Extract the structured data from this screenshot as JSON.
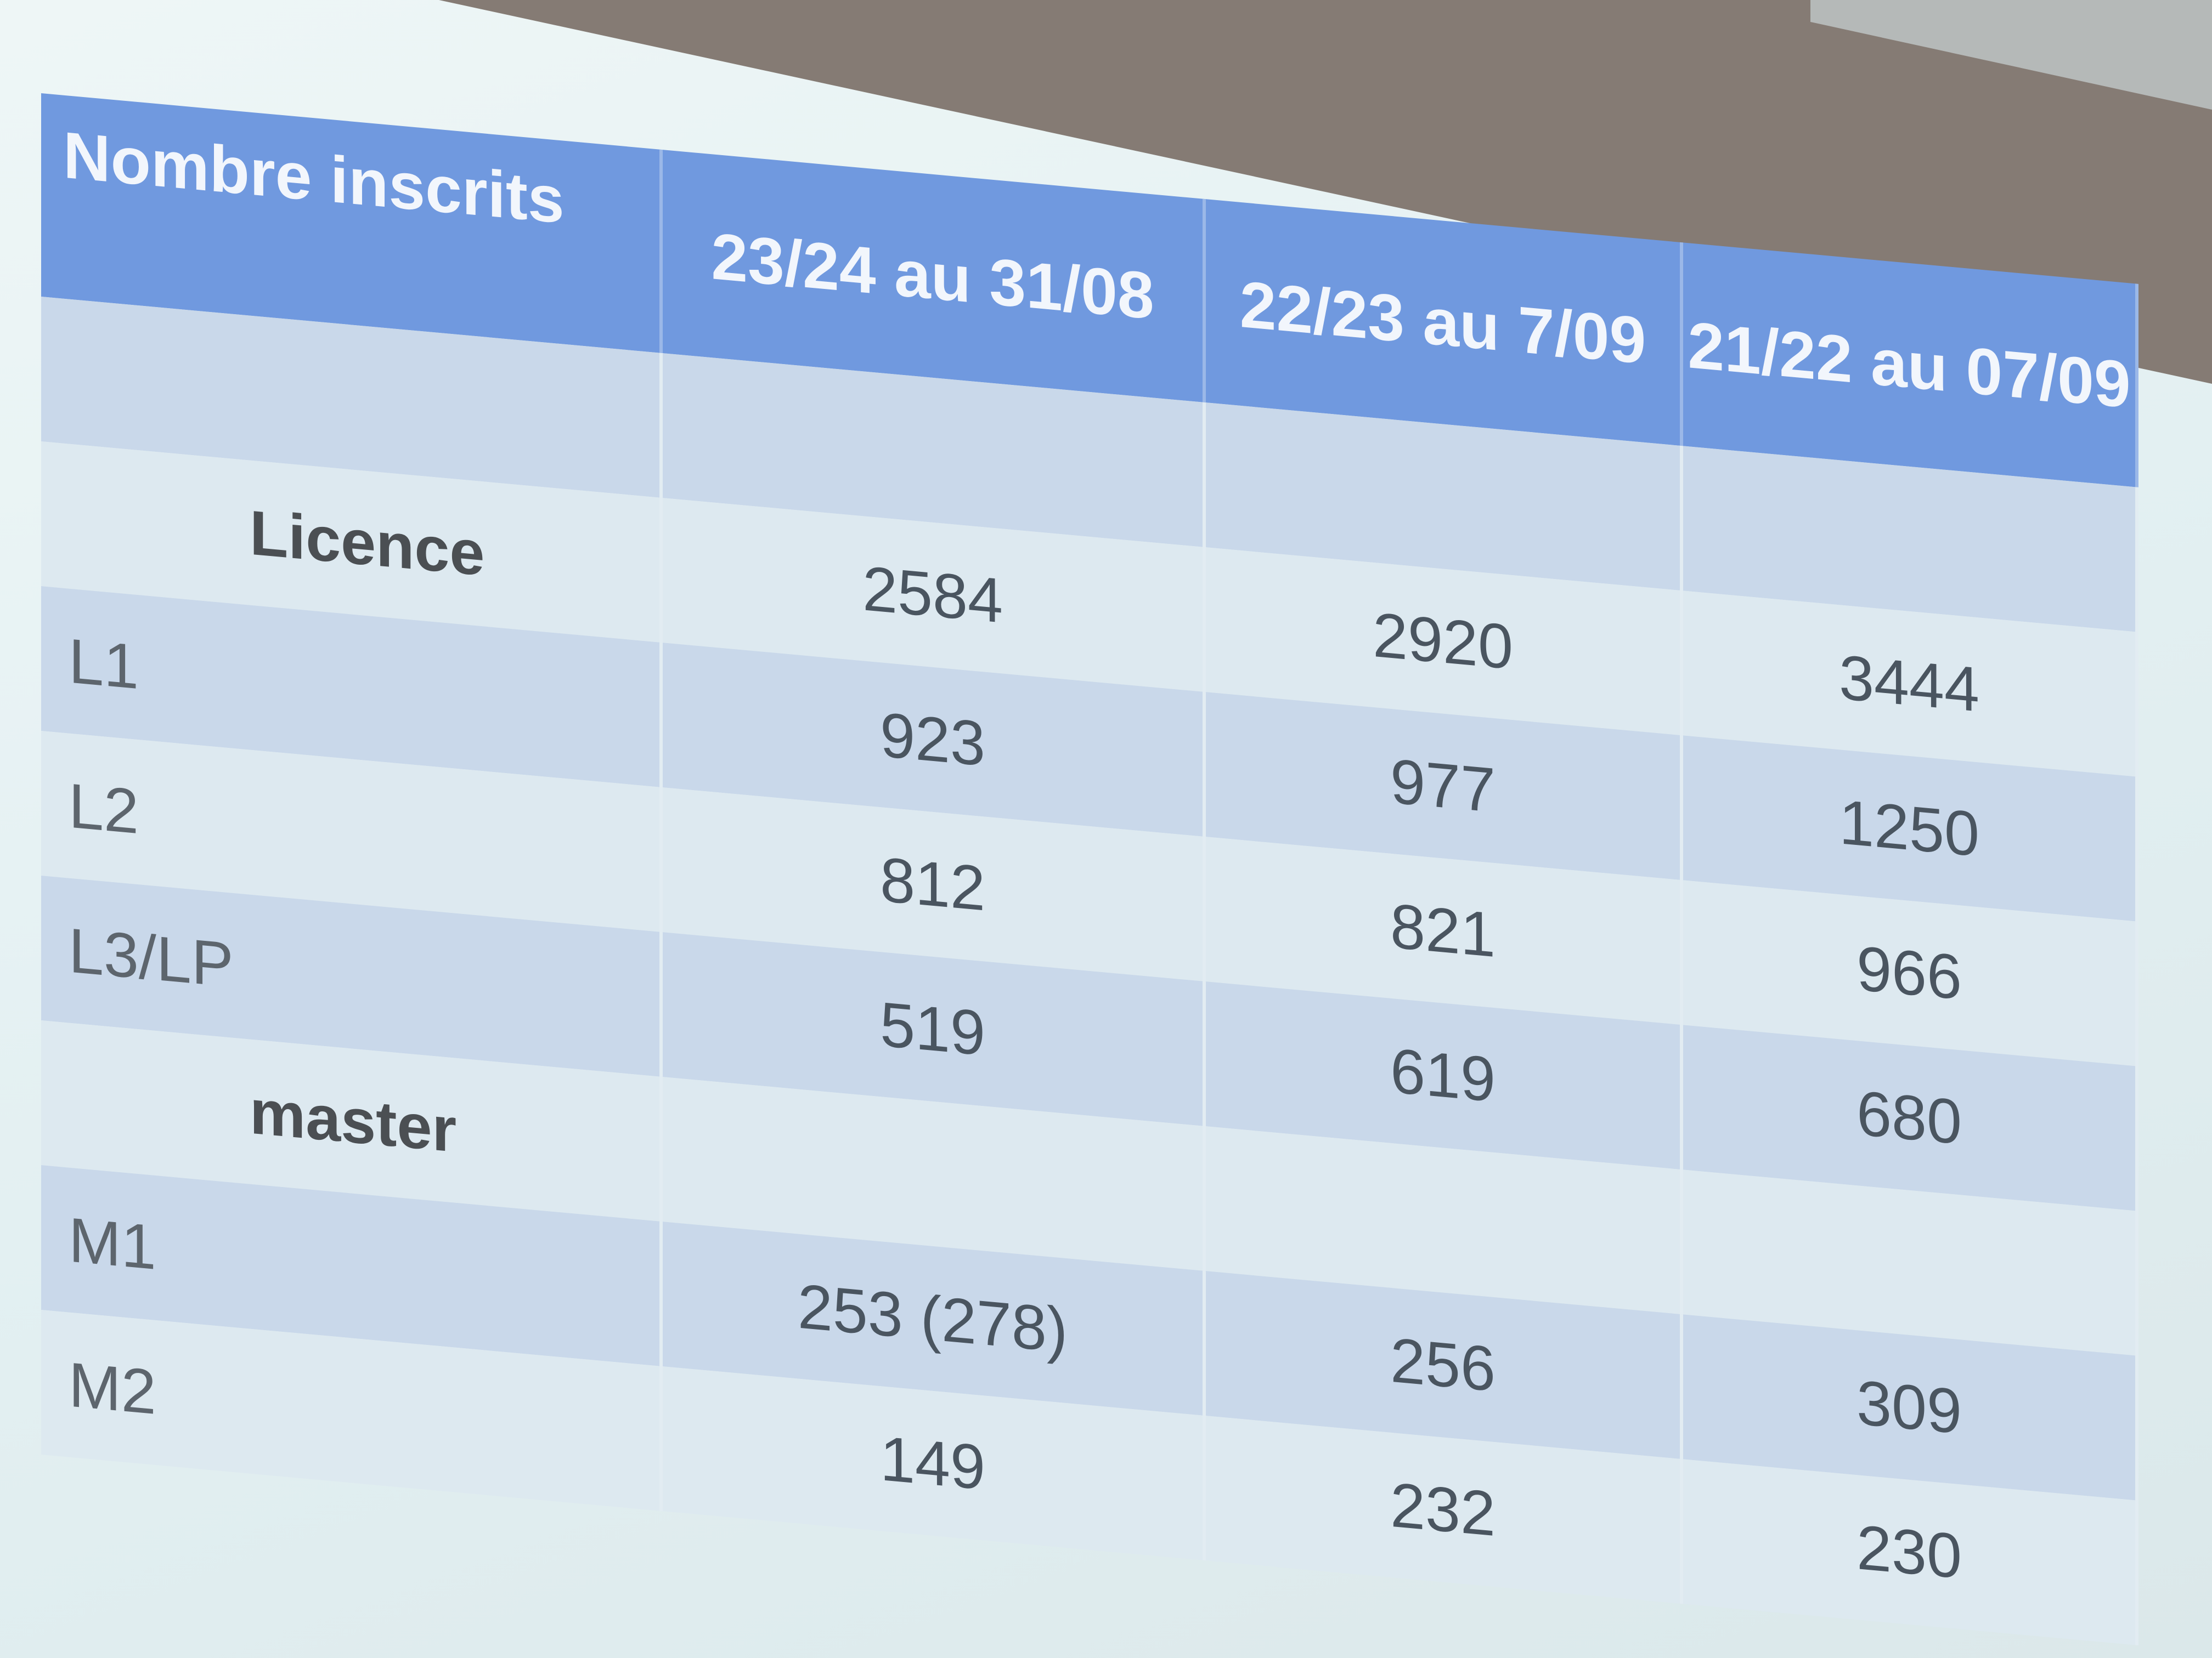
{
  "table": {
    "headers": [
      "Nombre inscrits",
      "23/24 au 31/08",
      "22/23 au 7/09",
      "21/22 au 07/09"
    ],
    "rows": [
      {
        "label": "",
        "values": [
          "",
          "",
          ""
        ]
      },
      {
        "label": "Licence",
        "values": [
          "2584",
          "2920",
          "3444"
        ]
      },
      {
        "label": "L1",
        "values": [
          "923",
          "977",
          "1250"
        ]
      },
      {
        "label": "L2",
        "values": [
          "812",
          "821",
          "966"
        ]
      },
      {
        "label": "L3/LP",
        "values": [
          "519",
          "619",
          "680"
        ]
      },
      {
        "label": "master",
        "values": [
          "",
          "",
          ""
        ]
      },
      {
        "label": "M1",
        "values": [
          "253 (278)",
          "256",
          "309"
        ]
      },
      {
        "label": "M2",
        "values": [
          "149",
          "232",
          "230"
        ]
      }
    ]
  },
  "colors": {
    "header": "#7099df",
    "band_dark": "#c9d8ea",
    "band_light": "#dde9f0"
  }
}
